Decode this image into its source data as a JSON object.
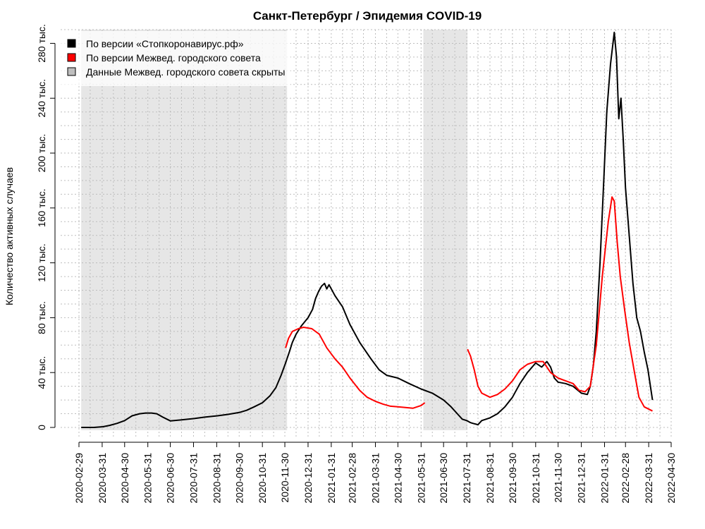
{
  "chart_data": {
    "type": "line",
    "title": "Санкт-Петербург / Эпидемия COVID-19",
    "xlabel": "",
    "ylabel": "Количество активных случаев",
    "x_range": [
      "2020-02-29",
      "2022-04-30"
    ],
    "ylim": [
      0,
      290000
    ],
    "y_ticks": [
      0,
      40000,
      80000,
      120000,
      160000,
      200000,
      240000,
      280000
    ],
    "y_tick_labels": [
      "0",
      "40 тыс.",
      "80 тыс.",
      "120 тыс.",
      "160 тыс.",
      "200 тыс.",
      "240 тыс.",
      "280 тыс."
    ],
    "x_tick_labels": [
      "2020-02-29",
      "2020-03-31",
      "2020-04-30",
      "2020-05-31",
      "2020-06-30",
      "2020-07-31",
      "2020-08-31",
      "2020-09-30",
      "2020-10-31",
      "2020-11-30",
      "2020-12-31",
      "2021-01-31",
      "2021-02-28",
      "2021-03-31",
      "2021-04-30",
      "2021-05-31",
      "2021-06-30",
      "2021-07-31",
      "2021-08-31",
      "2021-09-30",
      "2021-10-31",
      "2021-11-30",
      "2021-12-31",
      "2022-01-31",
      "2022-02-28",
      "2022-03-31",
      "2022-04-30"
    ],
    "grid": true,
    "legend_position": "top-left",
    "legend": [
      {
        "label": "По версии «Стопкоронавирус.рф»",
        "color": "#000000"
      },
      {
        "label": "По версии Межвед. городского совета",
        "color": "#ff0000"
      },
      {
        "label": "Данные Межвед. городского совета скрыты",
        "color": "#bebebe"
      }
    ],
    "shaded_periods": [
      {
        "start": "2020-03-03",
        "end": "2020-12-03"
      },
      {
        "start": "2021-06-03",
        "end": "2021-08-01"
      }
    ],
    "series": [
      {
        "name": "По версии «Стопкоронавирус.рф»",
        "color": "#000000",
        "points": [
          [
            "2020-03-03",
            0
          ],
          [
            "2020-03-20",
            0
          ],
          [
            "2020-04-01",
            500
          ],
          [
            "2020-04-10",
            1500
          ],
          [
            "2020-04-20",
            3000
          ],
          [
            "2020-04-30",
            5000
          ],
          [
            "2020-05-10",
            8500
          ],
          [
            "2020-05-20",
            10000
          ],
          [
            "2020-05-28",
            10500
          ],
          [
            "2020-06-05",
            10500
          ],
          [
            "2020-06-12",
            10000
          ],
          [
            "2020-06-20",
            7500
          ],
          [
            "2020-06-30",
            4800
          ],
          [
            "2020-07-15",
            5500
          ],
          [
            "2020-08-01",
            6500
          ],
          [
            "2020-08-15",
            7500
          ],
          [
            "2020-09-01",
            8500
          ],
          [
            "2020-09-15",
            9500
          ],
          [
            "2020-10-01",
            11000
          ],
          [
            "2020-10-10",
            12500
          ],
          [
            "2020-10-20",
            15000
          ],
          [
            "2020-10-31",
            18000
          ],
          [
            "2020-11-10",
            23000
          ],
          [
            "2020-11-18",
            29000
          ],
          [
            "2020-11-25",
            38000
          ],
          [
            "2020-12-01",
            47000
          ],
          [
            "2020-12-06",
            55000
          ],
          [
            "2020-12-10",
            62000
          ],
          [
            "2020-12-15",
            68000
          ],
          [
            "2020-12-22",
            74000
          ],
          [
            "2020-12-31",
            80000
          ],
          [
            "2021-01-06",
            86000
          ],
          [
            "2021-01-10",
            94000
          ],
          [
            "2021-01-14",
            99000
          ],
          [
            "2021-01-18",
            103000
          ],
          [
            "2021-01-22",
            105000
          ],
          [
            "2021-01-25",
            101000
          ],
          [
            "2021-01-28",
            104000
          ],
          [
            "2021-02-05",
            96000
          ],
          [
            "2021-02-15",
            88000
          ],
          [
            "2021-02-25",
            75000
          ],
          [
            "2021-03-10",
            62000
          ],
          [
            "2021-03-25",
            50000
          ],
          [
            "2021-04-05",
            42000
          ],
          [
            "2021-04-15",
            38000
          ],
          [
            "2021-04-30",
            36000
          ],
          [
            "2021-05-15",
            32000
          ],
          [
            "2021-05-31",
            28000
          ],
          [
            "2021-06-15",
            25000
          ],
          [
            "2021-06-30",
            20000
          ],
          [
            "2021-07-10",
            15000
          ],
          [
            "2021-07-20",
            9000
          ],
          [
            "2021-07-25",
            6000
          ],
          [
            "2021-07-31",
            5000
          ],
          [
            "2021-08-05",
            3500
          ],
          [
            "2021-08-08",
            3000
          ],
          [
            "2021-08-15",
            2000
          ],
          [
            "2021-08-20",
            5000
          ],
          [
            "2021-08-31",
            7000
          ],
          [
            "2021-09-10",
            10000
          ],
          [
            "2021-09-20",
            15000
          ],
          [
            "2021-09-30",
            22000
          ],
          [
            "2021-10-10",
            32000
          ],
          [
            "2021-10-20",
            40000
          ],
          [
            "2021-10-31",
            47000
          ],
          [
            "2021-11-08",
            44000
          ],
          [
            "2021-11-15",
            48000
          ],
          [
            "2021-11-20",
            44000
          ],
          [
            "2021-11-25",
            36000
          ],
          [
            "2021-11-30",
            33000
          ],
          [
            "2021-12-10",
            32000
          ],
          [
            "2021-12-20",
            30000
          ],
          [
            "2021-12-31",
            25000
          ],
          [
            "2022-01-08",
            24000
          ],
          [
            "2022-01-12",
            30000
          ],
          [
            "2022-01-16",
            45000
          ],
          [
            "2022-01-20",
            70000
          ],
          [
            "2022-01-25",
            120000
          ],
          [
            "2022-01-30",
            180000
          ],
          [
            "2022-02-03",
            230000
          ],
          [
            "2022-02-08",
            265000
          ],
          [
            "2022-02-13",
            288000
          ],
          [
            "2022-02-16",
            270000
          ],
          [
            "2022-02-19",
            225000
          ],
          [
            "2022-02-22",
            240000
          ],
          [
            "2022-02-25",
            210000
          ],
          [
            "2022-02-28",
            175000
          ],
          [
            "2022-03-05",
            140000
          ],
          [
            "2022-03-10",
            105000
          ],
          [
            "2022-03-15",
            80000
          ],
          [
            "2022-03-20",
            70000
          ],
          [
            "2022-03-25",
            55000
          ],
          [
            "2022-03-30",
            42000
          ],
          [
            "2022-04-05",
            20000
          ]
        ]
      },
      {
        "name": "По версии Межвед. городского совета",
        "color": "#ff0000",
        "points": [
          [
            "2020-12-01",
            58000
          ],
          [
            "2020-12-05",
            65000
          ],
          [
            "2020-12-10",
            70000
          ],
          [
            "2020-12-18",
            72000
          ],
          [
            "2020-12-25",
            73000
          ],
          [
            "2021-01-05",
            72000
          ],
          [
            "2021-01-15",
            68000
          ],
          [
            "2021-01-25",
            58000
          ],
          [
            "2021-02-05",
            50000
          ],
          [
            "2021-02-15",
            44000
          ],
          [
            "2021-02-25",
            36000
          ],
          [
            "2021-03-10",
            27000
          ],
          [
            "2021-03-20",
            22000
          ],
          [
            "2021-03-31",
            19000
          ],
          [
            "2021-04-10",
            17000
          ],
          [
            "2021-04-20",
            15500
          ],
          [
            "2021-04-30",
            15000
          ],
          [
            "2021-05-10",
            14500
          ],
          [
            "2021-05-20",
            14000
          ],
          [
            "2021-05-31",
            16000
          ],
          [
            "2021-06-05",
            18000
          ],
          null,
          [
            "2021-08-01",
            57000
          ],
          [
            "2021-08-05",
            52000
          ],
          [
            "2021-08-10",
            42000
          ],
          [
            "2021-08-15",
            30000
          ],
          [
            "2021-08-20",
            25000
          ],
          [
            "2021-08-31",
            22000
          ],
          [
            "2021-09-10",
            24000
          ],
          [
            "2021-09-20",
            28000
          ],
          [
            "2021-09-30",
            34000
          ],
          [
            "2021-10-10",
            42000
          ],
          [
            "2021-10-20",
            46000
          ],
          [
            "2021-10-31",
            48000
          ],
          [
            "2021-11-10",
            48000
          ],
          [
            "2021-11-20",
            40000
          ],
          [
            "2021-11-30",
            36000
          ],
          [
            "2021-12-10",
            34000
          ],
          [
            "2021-12-20",
            32000
          ],
          [
            "2021-12-28",
            27000
          ],
          [
            "2022-01-05",
            26000
          ],
          [
            "2022-01-12",
            30000
          ],
          [
            "2022-01-20",
            60000
          ],
          [
            "2022-01-28",
            110000
          ],
          [
            "2022-02-05",
            150000
          ],
          [
            "2022-02-10",
            168000
          ],
          [
            "2022-02-13",
            165000
          ],
          [
            "2022-02-17",
            135000
          ],
          [
            "2022-02-21",
            110000
          ],
          [
            "2022-02-27",
            85000
          ],
          [
            "2022-03-05",
            62000
          ],
          [
            "2022-03-12",
            40000
          ],
          [
            "2022-03-18",
            22000
          ],
          [
            "2022-03-25",
            15000
          ],
          [
            "2022-04-05",
            12000
          ]
        ]
      }
    ]
  }
}
